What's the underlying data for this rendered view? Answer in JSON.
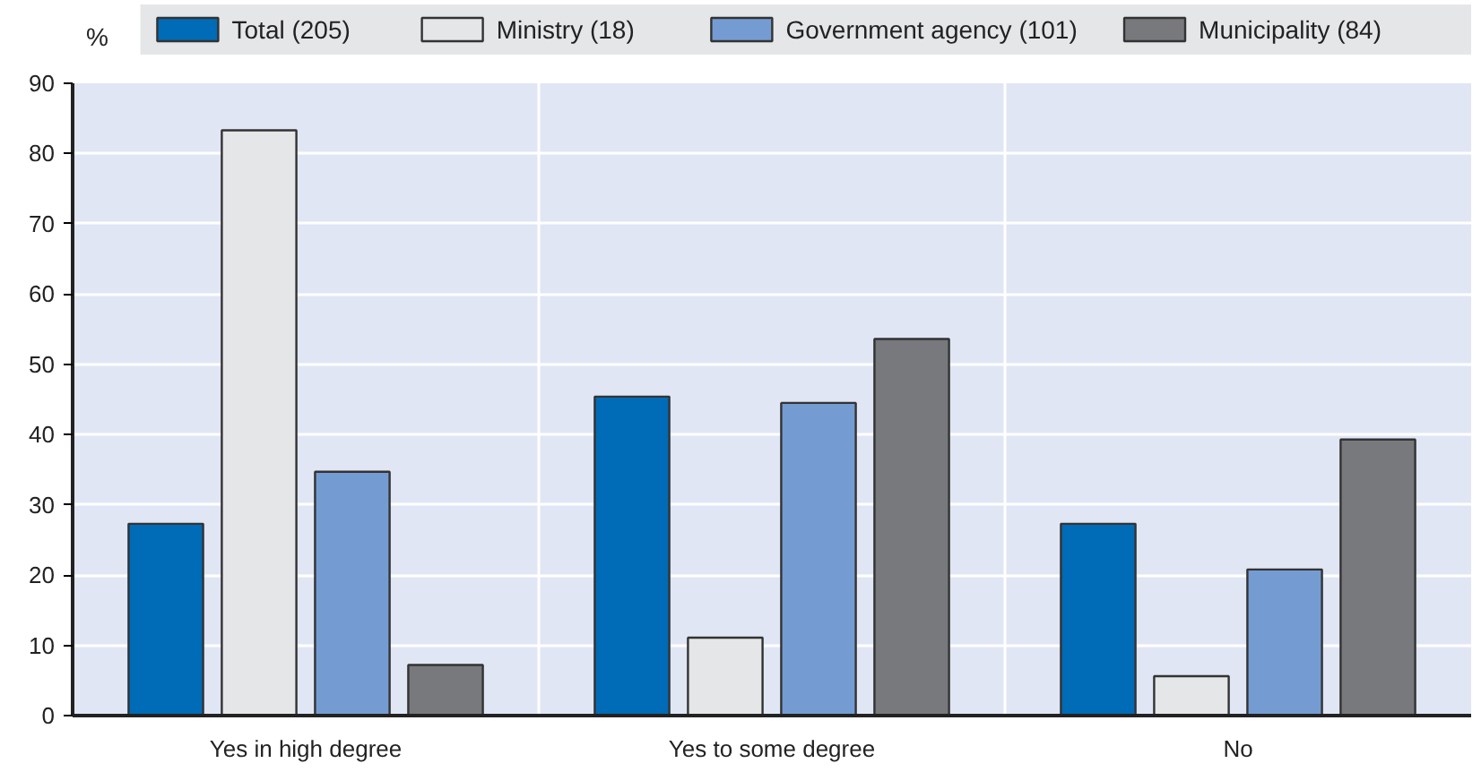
{
  "chart_data": {
    "type": "bar",
    "ylabel": "%",
    "categories": [
      "Yes in high degree",
      "Yes to some degree",
      "No"
    ],
    "series": [
      {
        "name": "Total (205)",
        "color": "#006bb6",
        "values": [
          27.3,
          45.4,
          27.3
        ]
      },
      {
        "name": "Ministry (18)",
        "color": "#e5e6e8",
        "values": [
          83.3,
          11.1,
          5.6
        ]
      },
      {
        "name": "Government agency (101)",
        "color": "#759cd2",
        "values": [
          34.7,
          44.5,
          20.8
        ]
      },
      {
        "name": "Municipality (84)",
        "color": "#78797c",
        "values": [
          7.2,
          53.6,
          39.3
        ]
      }
    ],
    "ylim": [
      0,
      90
    ],
    "yticks": [
      0,
      10,
      20,
      30,
      40,
      50,
      60,
      70,
      80,
      90
    ],
    "grid": true,
    "legend": "top"
  }
}
